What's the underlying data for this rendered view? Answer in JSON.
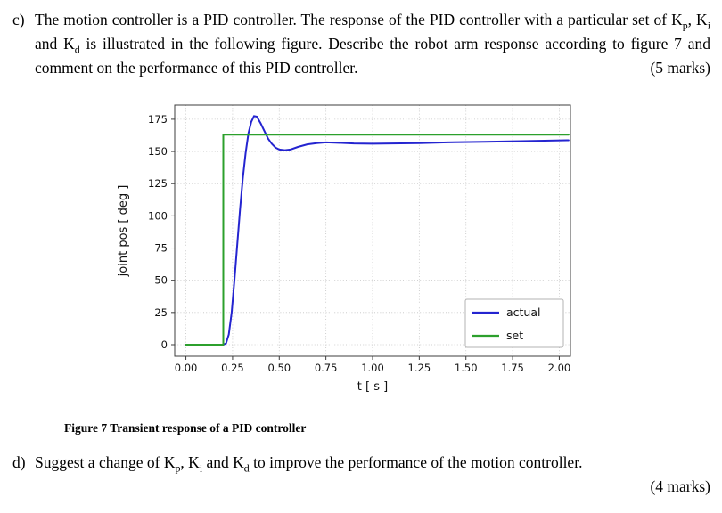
{
  "question_c": {
    "label": "c)",
    "text_1": "The motion controller is a PID controller. The response of the PID controller with a particular set of K",
    "sub_1": "p",
    "text_2": ", K",
    "sub_2": "i",
    "text_3": " and K",
    "sub_3": "d",
    "text_4": " is illustrated in the following figure. Describe the robot arm response according to figure 7 and comment on the performance of this PID controller.",
    "marks": "(5 marks)"
  },
  "question_d": {
    "label": "d)",
    "text_1": "Suggest a change of K",
    "sub_1": "p",
    "text_2": ", K",
    "sub_2": "i",
    "text_3": " and K",
    "sub_3": "d",
    "text_4": " to improve the performance of the motion controller.",
    "marks": "(4 marks)"
  },
  "figure": {
    "caption": "Figure 7 Transient response of a PID controller"
  },
  "chart_data": {
    "type": "line",
    "title": "",
    "xlabel": "t [ s ]",
    "ylabel": "joint pos [ deg ]",
    "xlim": [
      -0.06,
      2.06
    ],
    "ylim": [
      -9,
      186
    ],
    "grid": true,
    "legend_position": "lower right",
    "xticks": [
      0.0,
      0.25,
      0.5,
      0.75,
      1.0,
      1.25,
      1.5,
      1.75,
      2.0
    ],
    "xtick_labels": [
      "0.00",
      "0.25",
      "0.50",
      "0.75",
      "1.00",
      "1.25",
      "1.50",
      "1.75",
      "2.00"
    ],
    "yticks": [
      0,
      25,
      50,
      75,
      100,
      125,
      150,
      175
    ],
    "ytick_labels": [
      "0",
      "25",
      "50",
      "75",
      "100",
      "125",
      "150",
      "175"
    ],
    "colors": {
      "actual": "#2424d0",
      "set": "#2ca02c",
      "grid": "#c4c4c4",
      "frame": "#3c3c3c",
      "tick_text": "#111111"
    },
    "series": [
      {
        "name": "actual",
        "color": "#2424d0",
        "x": [
          0,
          0.2,
          0.215,
          0.23,
          0.245,
          0.26,
          0.275,
          0.29,
          0.305,
          0.32,
          0.335,
          0.35,
          0.365,
          0.38,
          0.4,
          0.42,
          0.44,
          0.46,
          0.48,
          0.5,
          0.53,
          0.56,
          0.6,
          0.65,
          0.7,
          0.75,
          0.8,
          0.9,
          1.0,
          1.1,
          1.25,
          1.4,
          1.6,
          1.8,
          2.05
        ],
        "y": [
          0,
          0,
          1,
          8,
          25,
          50,
          78,
          105,
          129,
          149,
          164,
          173,
          177.5,
          177,
          172,
          166,
          160,
          156,
          153,
          151.5,
          151,
          151.5,
          153.5,
          155.5,
          156.5,
          157,
          156.8,
          156.2,
          156,
          156.2,
          156.5,
          157,
          157.5,
          158,
          158.7
        ]
      },
      {
        "name": "set",
        "color": "#2ca02c",
        "x": [
          0,
          0.2,
          0.2,
          2.05
        ],
        "y": [
          0,
          0,
          163,
          163
        ]
      }
    ]
  }
}
